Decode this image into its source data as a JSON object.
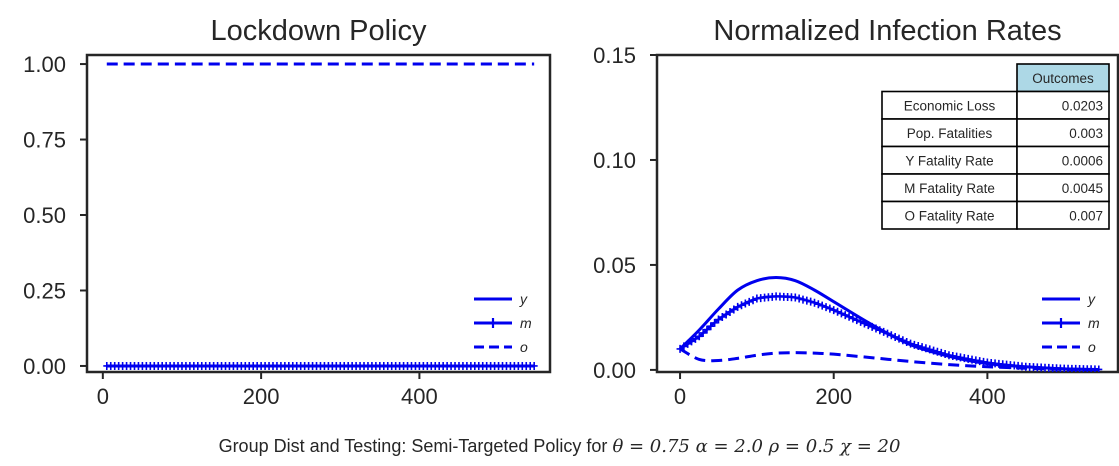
{
  "chart_data": [
    {
      "type": "line",
      "title": "Lockdown Policy",
      "xlim": [
        -20,
        565
      ],
      "ylim": [
        -0.02,
        1.03
      ],
      "xticks": [
        "0",
        "200",
        "400"
      ],
      "xtick_values": [
        0,
        200,
        400
      ],
      "yticks": [
        "0.00",
        "0.25",
        "0.50",
        "0.75",
        "1.00"
      ],
      "ytick_values": [
        0,
        0.25,
        0.5,
        0.75,
        1.0
      ],
      "legend_position": "lower-right",
      "grid": false,
      "series": [
        {
          "name": "y",
          "style": "solid",
          "color": "#0000ee",
          "x": [
            5,
            100,
            200,
            300,
            400,
            545
          ],
          "values": [
            0,
            0,
            0,
            0,
            0,
            0
          ]
        },
        {
          "name": "m",
          "style": "plus",
          "color": "#0000ee",
          "x": [
            5,
            100,
            200,
            300,
            400,
            545
          ],
          "values": [
            0,
            0,
            0,
            0,
            0,
            0
          ]
        },
        {
          "name": "o",
          "style": "dashed",
          "color": "#0000ee",
          "x": [
            5,
            100,
            200,
            300,
            400,
            545
          ],
          "values": [
            1,
            1,
            1,
            1,
            1,
            1
          ]
        }
      ]
    },
    {
      "type": "line",
      "title": "Normalized Infection Rates",
      "xlim": [
        -30,
        570
      ],
      "ylim": [
        -0.001,
        0.15
      ],
      "xticks": [
        "0",
        "200",
        "400"
      ],
      "xtick_values": [
        0,
        200,
        400
      ],
      "yticks": [
        "0.00",
        "0.05",
        "0.10",
        "0.15"
      ],
      "ytick_values": [
        0,
        0.05,
        0.1,
        0.15
      ],
      "legend_position": "lower-right",
      "grid": false,
      "series": [
        {
          "name": "y",
          "style": "solid",
          "color": "#0000ee",
          "x": [
            0,
            25,
            50,
            75,
            100,
            125,
            150,
            175,
            200,
            250,
            300,
            350,
            400,
            450,
            500,
            545
          ],
          "values": [
            0.01,
            0.019,
            0.029,
            0.038,
            0.0425,
            0.044,
            0.0425,
            0.038,
            0.0325,
            0.0215,
            0.012,
            0.0065,
            0.003,
            0.0015,
            0.0005,
            0.0002
          ]
        },
        {
          "name": "m",
          "style": "plus",
          "color": "#0000ee",
          "x": [
            0,
            25,
            50,
            75,
            100,
            125,
            150,
            175,
            200,
            250,
            300,
            350,
            400,
            450,
            500,
            545
          ],
          "values": [
            0.01,
            0.016,
            0.024,
            0.03,
            0.034,
            0.035,
            0.0345,
            0.032,
            0.0285,
            0.0205,
            0.0125,
            0.007,
            0.0035,
            0.0015,
            0.0006,
            0.0002
          ]
        },
        {
          "name": "o",
          "style": "dashed",
          "color": "#0000ee",
          "x": [
            0,
            25,
            50,
            75,
            100,
            125,
            150,
            175,
            200,
            250,
            300,
            350,
            400,
            450,
            500,
            545
          ],
          "values": [
            0.01,
            0.005,
            0.0045,
            0.0055,
            0.007,
            0.008,
            0.0082,
            0.008,
            0.0075,
            0.0058,
            0.004,
            0.0025,
            0.0015,
            0.0008,
            0.0003,
            0.0001
          ]
        }
      ],
      "table": {
        "header": "Outcomes",
        "header_color": "#add8e6",
        "rows": [
          {
            "label": "Economic Loss",
            "value": "0.0203"
          },
          {
            "label": "Pop. Fatalities",
            "value": "0.003"
          },
          {
            "label": "Y Fatality Rate",
            "value": "0.0006"
          },
          {
            "label": "M Fatality Rate",
            "value": "0.0045"
          },
          {
            "label": "O Fatality Rate",
            "value": "0.007"
          }
        ]
      }
    }
  ],
  "caption": {
    "text": "Group Dist and Testing: Semi-Targeted Policy for",
    "params": "θ = 0.75   α = 2.0  ρ = 0.5  χ = 20"
  }
}
